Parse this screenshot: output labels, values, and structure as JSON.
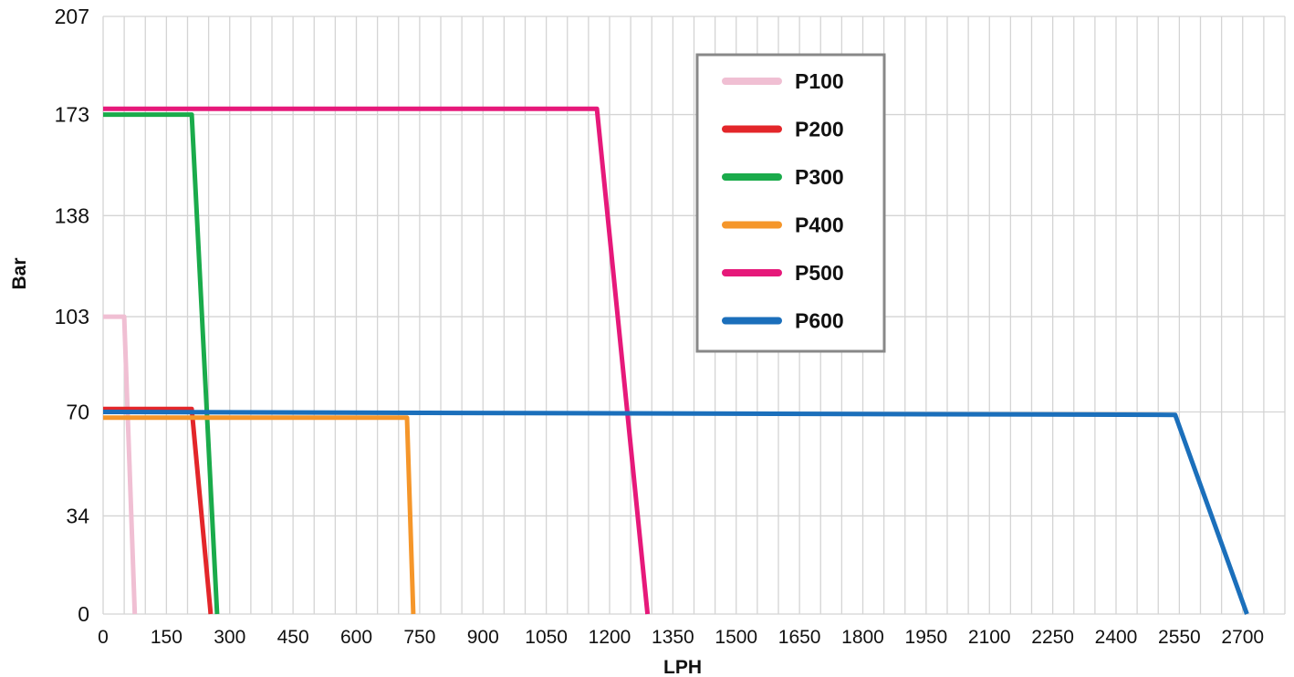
{
  "chart_data": {
    "type": "line",
    "title": "",
    "xlabel": "LPH",
    "ylabel": "Bar",
    "xlim": [
      0,
      2800
    ],
    "ylim": [
      0,
      207
    ],
    "x_ticks": [
      0,
      150,
      300,
      450,
      600,
      750,
      900,
      1050,
      1200,
      1350,
      1500,
      1650,
      1800,
      1950,
      2100,
      2250,
      2400,
      2550,
      2700
    ],
    "y_ticks": [
      0,
      34,
      70,
      103,
      138,
      173,
      207
    ],
    "grid": true,
    "legend_position": "top-right",
    "series": [
      {
        "name": "P100",
        "color": "#f0bfd3",
        "points": [
          [
            0,
            103
          ],
          [
            50,
            103
          ],
          [
            75,
            0
          ]
        ]
      },
      {
        "name": "P200",
        "color": "#e3262a",
        "points": [
          [
            0,
            71
          ],
          [
            210,
            71
          ],
          [
            255,
            0
          ]
        ]
      },
      {
        "name": "P300",
        "color": "#1aab4b",
        "points": [
          [
            0,
            173
          ],
          [
            210,
            173
          ],
          [
            270,
            0
          ]
        ]
      },
      {
        "name": "P400",
        "color": "#f5962a",
        "points": [
          [
            0,
            68
          ],
          [
            720,
            68
          ],
          [
            735,
            0
          ]
        ]
      },
      {
        "name": "P500",
        "color": "#e6197a",
        "points": [
          [
            0,
            175
          ],
          [
            1170,
            175
          ],
          [
            1290,
            0
          ]
        ]
      },
      {
        "name": "P600",
        "color": "#1b6fbb",
        "points": [
          [
            0,
            70
          ],
          [
            2540,
            69
          ],
          [
            2710,
            0
          ]
        ]
      }
    ]
  }
}
